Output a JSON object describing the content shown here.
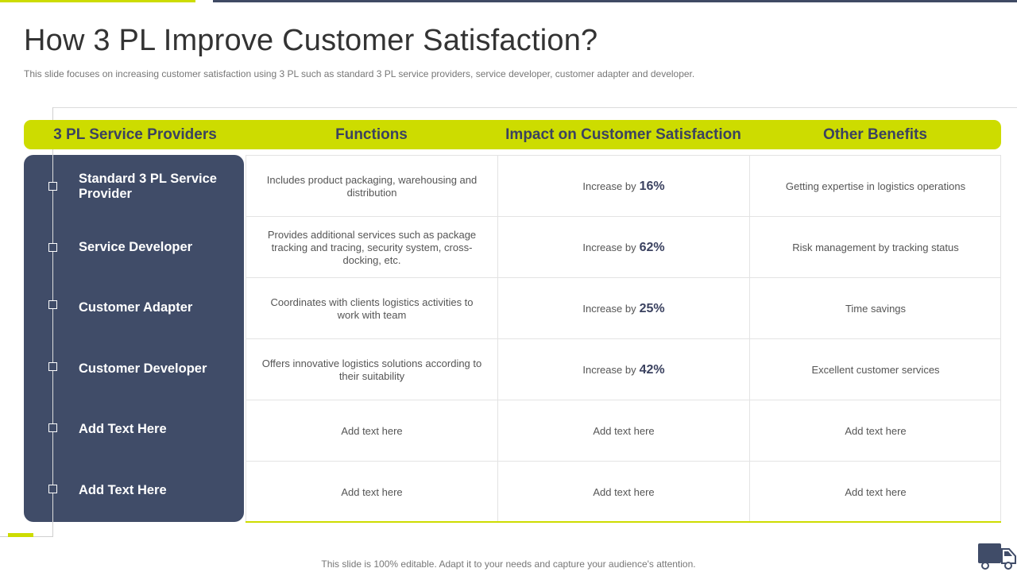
{
  "slide": {
    "title": "How 3 PL Improve Customer Satisfaction?",
    "subtitle": "This slide focuses on increasing customer satisfaction using 3 PL such as standard 3 PL service providers, service developer, customer adapter and developer.",
    "footer": "This slide is 100% editable. Adapt it to your needs and capture your audience's attention."
  },
  "table": {
    "headers": [
      "3 PL Service Providers",
      "Functions",
      "Impact on Customer Satisfaction",
      "Other Benefits"
    ],
    "impact_prefix": "Increase by",
    "rows": [
      {
        "provider": "Standard 3 PL Service Provider",
        "function": "Includes product packaging, warehousing and distribution",
        "impact": "16%",
        "benefit": "Getting expertise in logistics operations"
      },
      {
        "provider": "Service Developer",
        "function": "Provides additional services such as package tracking and tracing, security system, cross-docking, etc.",
        "impact": "62%",
        "benefit": "Risk management by tracking status"
      },
      {
        "provider": "Customer Adapter",
        "function": "Coordinates with clients logistics activities to work with team",
        "impact": "25%",
        "benefit": "Time savings"
      },
      {
        "provider": "Customer Developer",
        "function": "Offers innovative logistics solutions according to their suitability",
        "impact": "42%",
        "benefit": "Excellent customer services"
      },
      {
        "provider": "Add Text Here",
        "function": "Add text here",
        "impact_text": "Add text here",
        "benefit": "Add text here"
      },
      {
        "provider": "Add Text Here",
        "function": "Add text here",
        "impact_text": "Add text here",
        "benefit": "Add text here"
      }
    ]
  },
  "colors": {
    "accent": "#cddc00",
    "dark": "#404c68",
    "header_text": "#3b4260"
  },
  "icons": {
    "corner": "delivery-truck-icon"
  }
}
